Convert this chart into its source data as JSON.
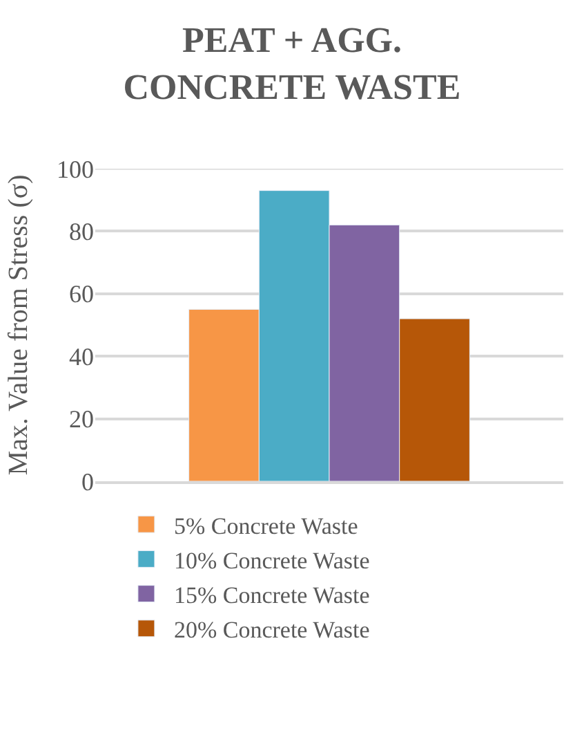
{
  "chart_data": {
    "type": "bar",
    "title": "PEAT + AGG.\nCONCRETE WASTE",
    "ylabel": "Max. Value from Stress (σ)",
    "categories": [
      null
    ],
    "series": [
      {
        "name": "5% Concrete Waste",
        "color": "#f79646",
        "values": [
          55
        ]
      },
      {
        "name": "10% Concrete Waste",
        "color": "#4bacc6",
        "values": [
          93
        ]
      },
      {
        "name": "15% Concrete Waste",
        "color": "#8064a2",
        "values": [
          82
        ]
      },
      {
        "name": "20% Concrete Waste",
        "color": "#b65708",
        "values": [
          52
        ]
      }
    ],
    "ylim": [
      0,
      100
    ],
    "yticks": [
      0,
      20,
      40,
      60,
      80,
      100
    ],
    "grid": "y",
    "legend": "bottom"
  }
}
